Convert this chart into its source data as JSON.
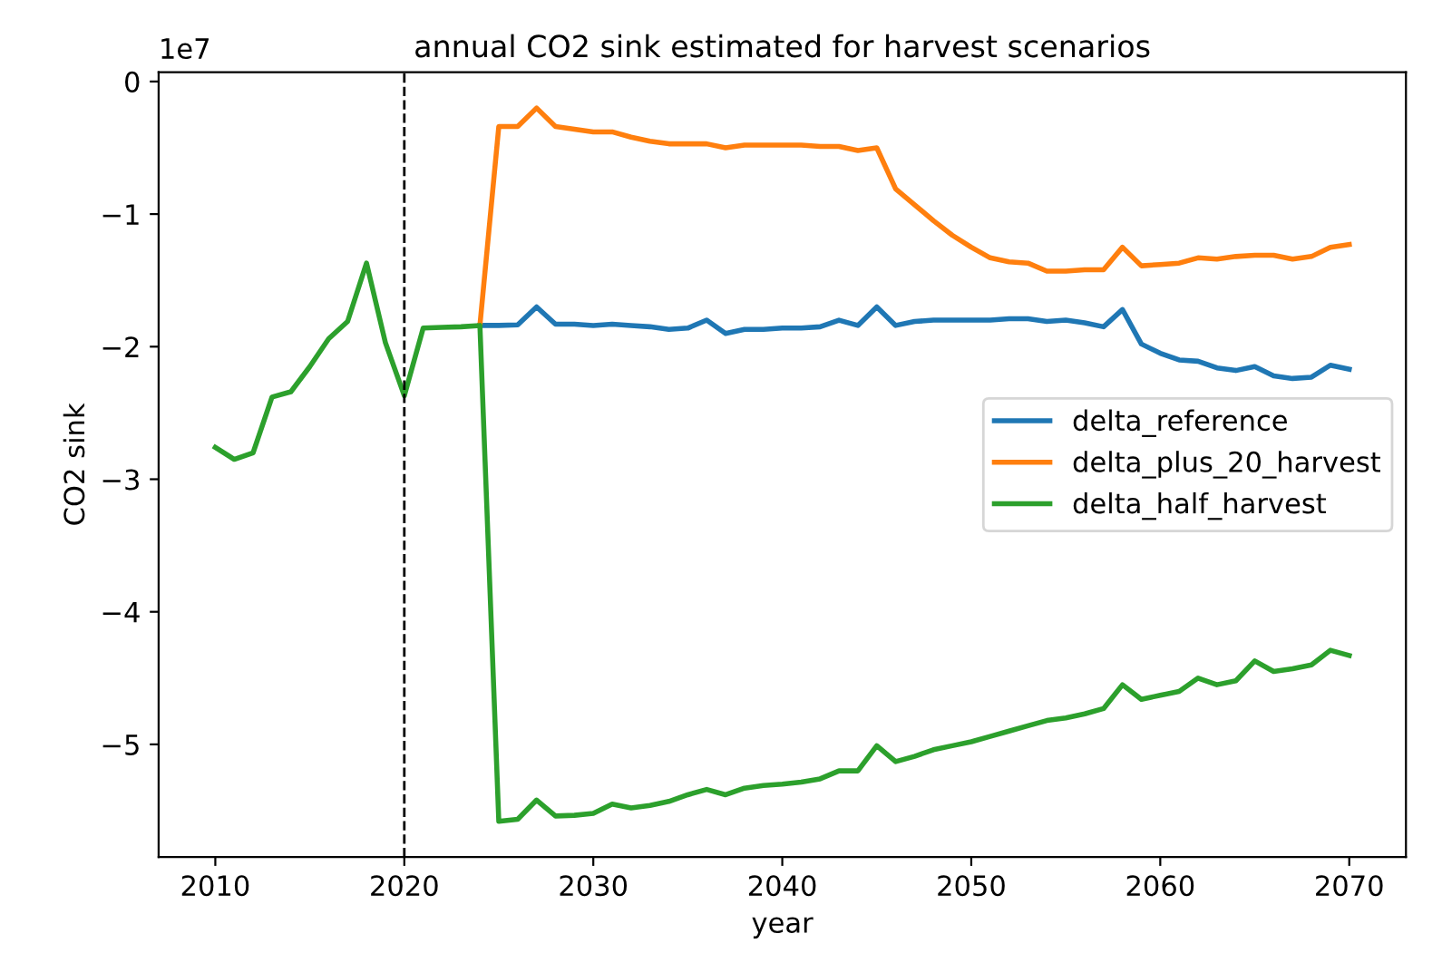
{
  "chart_data": {
    "type": "line",
    "title": "annual CO2 sink estimated for harvest scenarios",
    "xlabel": "year",
    "ylabel": "CO2 sink",
    "annotations": [
      "1e7"
    ],
    "x": [
      2010,
      2011,
      2012,
      2013,
      2014,
      2015,
      2016,
      2017,
      2018,
      2019,
      2020,
      2021,
      2022,
      2023,
      2024,
      2025,
      2026,
      2027,
      2028,
      2029,
      2030,
      2031,
      2032,
      2033,
      2034,
      2035,
      2036,
      2037,
      2038,
      2039,
      2040,
      2041,
      2042,
      2043,
      2044,
      2045,
      2046,
      2047,
      2048,
      2049,
      2050,
      2051,
      2052,
      2053,
      2054,
      2055,
      2056,
      2057,
      2058,
      2059,
      2060,
      2061,
      2062,
      2063,
      2064,
      2065,
      2066,
      2067,
      2068,
      2069,
      2070
    ],
    "series": [
      {
        "name": "delta_reference",
        "color": "#1f77b4",
        "values": [
          null,
          null,
          null,
          null,
          null,
          null,
          null,
          null,
          null,
          null,
          null,
          null,
          null,
          null,
          -1.84,
          -1.84,
          -1.835,
          -1.7,
          -1.83,
          -1.83,
          -1.84,
          -1.83,
          -1.84,
          -1.85,
          -1.87,
          -1.86,
          -1.8,
          -1.9,
          -1.87,
          -1.87,
          -1.86,
          -1.86,
          -1.85,
          -1.8,
          -1.84,
          -1.7,
          -1.84,
          -1.81,
          -1.8,
          -1.8,
          -1.8,
          -1.8,
          -1.79,
          -1.79,
          -1.81,
          -1.8,
          -1.82,
          -1.85,
          -1.72,
          -1.98,
          -2.05,
          -2.1,
          -2.11,
          -2.16,
          -2.18,
          -2.15,
          -2.22,
          -2.24,
          -2.23,
          -2.14,
          -2.17
        ]
      },
      {
        "name": "delta_plus_20_harvest",
        "color": "#ff7f0e",
        "values": [
          null,
          null,
          null,
          null,
          null,
          null,
          null,
          null,
          null,
          null,
          null,
          null,
          null,
          null,
          -1.84,
          -0.34,
          -0.34,
          -0.2,
          -0.34,
          -0.36,
          -0.38,
          -0.38,
          -0.42,
          -0.45,
          -0.47,
          -0.47,
          -0.47,
          -0.5,
          -0.48,
          -0.48,
          -0.48,
          -0.48,
          -0.49,
          -0.49,
          -0.52,
          -0.5,
          -0.81,
          -0.93,
          -1.05,
          -1.16,
          -1.25,
          -1.33,
          -1.36,
          -1.37,
          -1.43,
          -1.43,
          -1.42,
          -1.42,
          -1.25,
          -1.39,
          -1.38,
          -1.37,
          -1.33,
          -1.34,
          -1.32,
          -1.31,
          -1.31,
          -1.34,
          -1.32,
          -1.25,
          -1.23
        ]
      },
      {
        "name": "delta_half_harvest",
        "color": "#2ca02c",
        "values": [
          -2.76,
          -2.85,
          -2.8,
          -2.38,
          -2.34,
          -2.15,
          -1.94,
          -1.81,
          -1.37,
          -1.97,
          -2.37,
          -1.86,
          -1.855,
          -1.85,
          -1.84,
          -5.58,
          -5.565,
          -5.42,
          -5.54,
          -5.535,
          -5.52,
          -5.45,
          -5.48,
          -5.46,
          -5.43,
          -5.38,
          -5.34,
          -5.38,
          -5.33,
          -5.31,
          -5.3,
          -5.285,
          -5.26,
          -5.2,
          -5.2,
          -5.01,
          -5.13,
          -5.09,
          -5.04,
          -5.01,
          -4.98,
          -4.94,
          -4.9,
          -4.86,
          -4.82,
          -4.8,
          -4.77,
          -4.73,
          -4.55,
          -4.66,
          -4.63,
          -4.6,
          -4.5,
          -4.55,
          -4.52,
          -4.37,
          -4.45,
          -4.43,
          -4.4,
          -4.29,
          -4.33
        ]
      }
    ],
    "xlim": [
      2007,
      2073
    ],
    "xticks": [
      2010,
      2020,
      2030,
      2040,
      2050,
      2060,
      2070
    ],
    "ylim": [
      -5.85,
      0.07
    ],
    "yticks": [
      {
        "value": -5,
        "label": "−5"
      },
      {
        "value": -4,
        "label": "−4"
      },
      {
        "value": -3,
        "label": "−3"
      },
      {
        "value": -2,
        "label": "−2"
      },
      {
        "value": -1,
        "label": "−1"
      },
      0
    ],
    "ref_lines": [
      {
        "axis": "x",
        "value": 2020,
        "color": "#000000",
        "line_style": "dashed"
      }
    ],
    "legend": "center right",
    "grid": false,
    "marker": "none",
    "line_style": "solid"
  }
}
